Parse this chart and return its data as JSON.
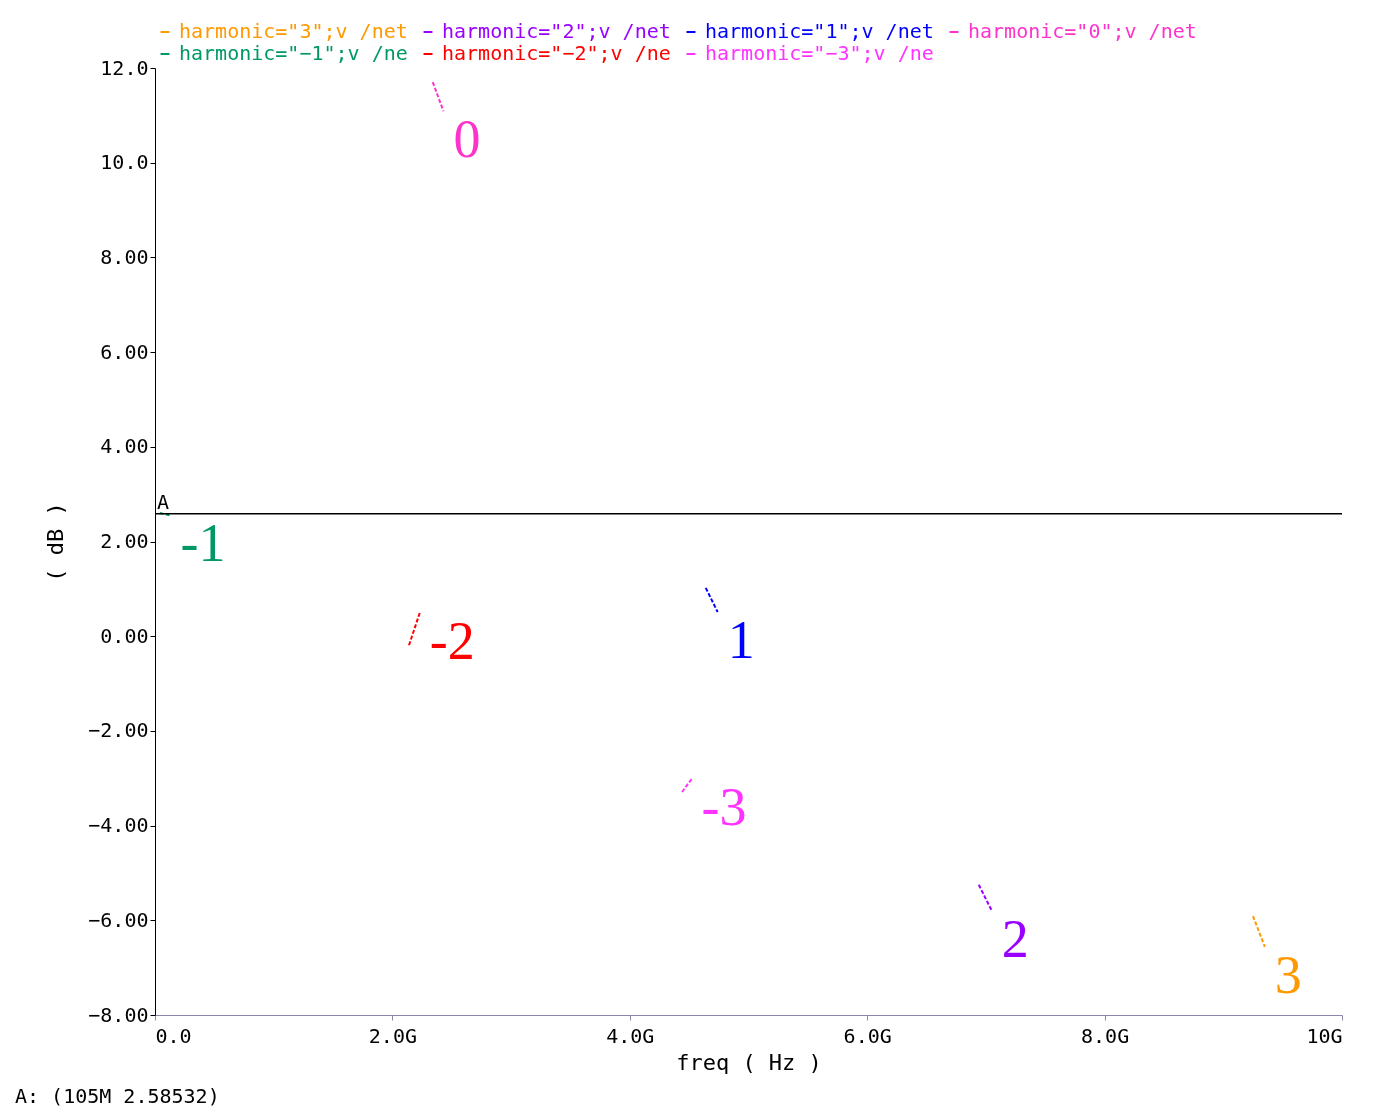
{
  "chart_data": {
    "type": "line",
    "xlabel": "freq ( Hz )",
    "ylabel": "( dB )",
    "xlim": [
      0,
      10
    ],
    "ylim": [
      -8,
      12
    ],
    "xticks": [
      {
        "value": 0,
        "label": "0.0"
      },
      {
        "value": 2,
        "label": "2.0G"
      },
      {
        "value": 4,
        "label": "4.0G"
      },
      {
        "value": 6,
        "label": "6.0G"
      },
      {
        "value": 8,
        "label": "8.0G"
      },
      {
        "value": 10,
        "label": "10G"
      }
    ],
    "yticks": [
      {
        "value": 12,
        "label": "12.0"
      },
      {
        "value": 10,
        "label": "10.0"
      },
      {
        "value": 8,
        "label": "8.00"
      },
      {
        "value": 6,
        "label": "6.00"
      },
      {
        "value": 4,
        "label": "4.00"
      },
      {
        "value": 2,
        "label": "2.00"
      },
      {
        "value": 0,
        "label": "0.00"
      },
      {
        "value": -2,
        "label": "−2.00"
      },
      {
        "value": -4,
        "label": "−4.00"
      },
      {
        "value": -6,
        "label": "−6.00"
      },
      {
        "value": -8,
        "label": "−8.00"
      }
    ],
    "grid": false,
    "legend": "top",
    "series": [
      {
        "name": "harmonic=\"3\";v /net",
        "color": "#ff9900",
        "x": [
          9.25,
          9.35
        ],
        "values": [
          -5.91,
          -6.56
        ],
        "line_style": "dashed"
      },
      {
        "name": "harmonic=\"2\";v /net",
        "color": "#9900ff",
        "x": [
          6.94,
          7.05
        ],
        "values": [
          -5.25,
          -5.8
        ],
        "line_style": "dashed"
      },
      {
        "name": "harmonic=\"1\";v /net",
        "color": "#0000ff",
        "x": [
          4.64,
          4.74
        ],
        "values": [
          1.02,
          0.51
        ],
        "line_style": "dashed"
      },
      {
        "name": "harmonic=\"0\";v /net",
        "color": "#ff33cc",
        "x": [
          2.34,
          2.43
        ],
        "values": [
          11.7,
          11.09
        ],
        "line_style": "dashed"
      },
      {
        "name": "harmonic=\"−1\";v /ne",
        "color": "#009966",
        "x": [
          0.04,
          0.13
        ],
        "values": [
          2.6,
          2.55
        ],
        "line_style": "dashed"
      },
      {
        "name": "harmonic=\"−2\";v /ne",
        "color": "#ff0000",
        "x": [
          2.14,
          2.23
        ],
        "values": [
          -0.19,
          0.49
        ],
        "line_style": "dashed"
      },
      {
        "name": "harmonic=\"−3\";v /ne",
        "color": "#ff33ff",
        "x": [
          4.44,
          4.52
        ],
        "values": [
          -3.29,
          -3.02
        ],
        "line_style": "dashed"
      }
    ],
    "ref_lines": [
      {
        "axis": "y",
        "value": 2.58532,
        "label": "A",
        "color": "#000000"
      }
    ],
    "annotations": [
      "3",
      "2",
      "1",
      "0",
      "-1",
      "-2",
      "-3",
      "A: (105M 2.58532)"
    ]
  }
}
